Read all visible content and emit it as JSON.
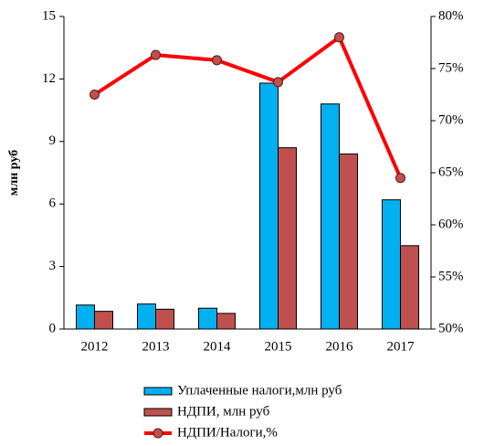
{
  "chart_data": {
    "type": "bar_line",
    "ylabel": "млн руб",
    "categories": [
      "2012",
      "2013",
      "2014",
      "2015",
      "2016",
      "2017"
    ],
    "series": [
      {
        "name": "Уплаченные налоги,млн руб",
        "type": "bar",
        "color": "#00b0f0",
        "values": [
          1.15,
          1.2,
          1.0,
          11.8,
          10.8,
          6.2
        ]
      },
      {
        "name": "НДПИ, млн руб",
        "type": "bar",
        "color": "#c0504d",
        "values": [
          0.85,
          0.95,
          0.75,
          8.7,
          8.4,
          4.0
        ]
      },
      {
        "name": "НДПИ/Налоги,%",
        "type": "line",
        "axis": "y2",
        "color": "#ff0000",
        "marker_color": "#c0504d",
        "values": [
          72.5,
          76.3,
          75.8,
          73.7,
          78.0,
          64.5
        ]
      }
    ],
    "ylim": [
      0,
      15
    ],
    "yticks": [
      0,
      3,
      6,
      9,
      12,
      15
    ],
    "y2lim": [
      50,
      80
    ],
    "y2ticks": [
      {
        "value": 50,
        "label": "50%"
      },
      {
        "value": 55,
        "label": "55%"
      },
      {
        "value": 60,
        "label": "60%"
      },
      {
        "value": 65,
        "label": "65%"
      },
      {
        "value": 70,
        "label": "70%"
      },
      {
        "value": 75,
        "label": "75%"
      },
      {
        "value": 80,
        "label": "80%"
      }
    ],
    "grid": false
  }
}
